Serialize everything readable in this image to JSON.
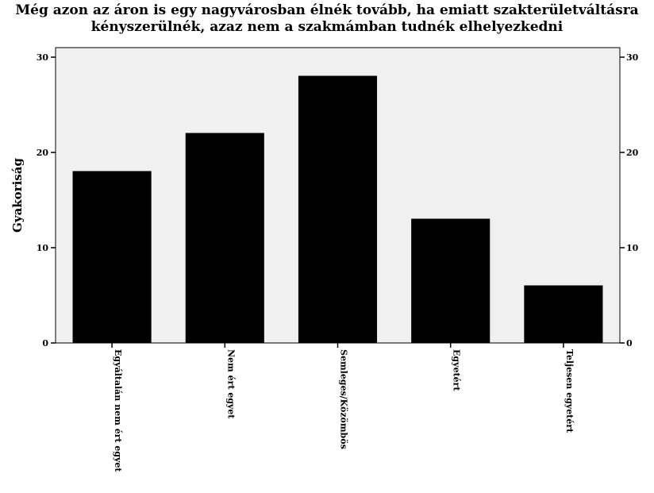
{
  "chart_data": {
    "type": "bar",
    "title_line1": "Még azon az áron is egy nagyvárosban élnék tovább, ha emiatt szakterületváltásra",
    "title_line2": "kényszerülnék, azaz nem a szakmámban tudnék elhelyezkedni",
    "categories": [
      "Egyáltalán nem ért egyet",
      "Nem ért egyet",
      "Semleges/Közömbös",
      "Egyetért",
      "Teljesen egyetért"
    ],
    "values": [
      18,
      22,
      28,
      13,
      6
    ],
    "xlabel": "",
    "ylabel": "Gyakoriság",
    "ylim": [
      0,
      31
    ],
    "yticks": [
      0,
      10,
      20,
      30
    ],
    "right_axis": true,
    "grid": false,
    "plot_background": "#f0f0f0",
    "bar_color": "#000000"
  }
}
